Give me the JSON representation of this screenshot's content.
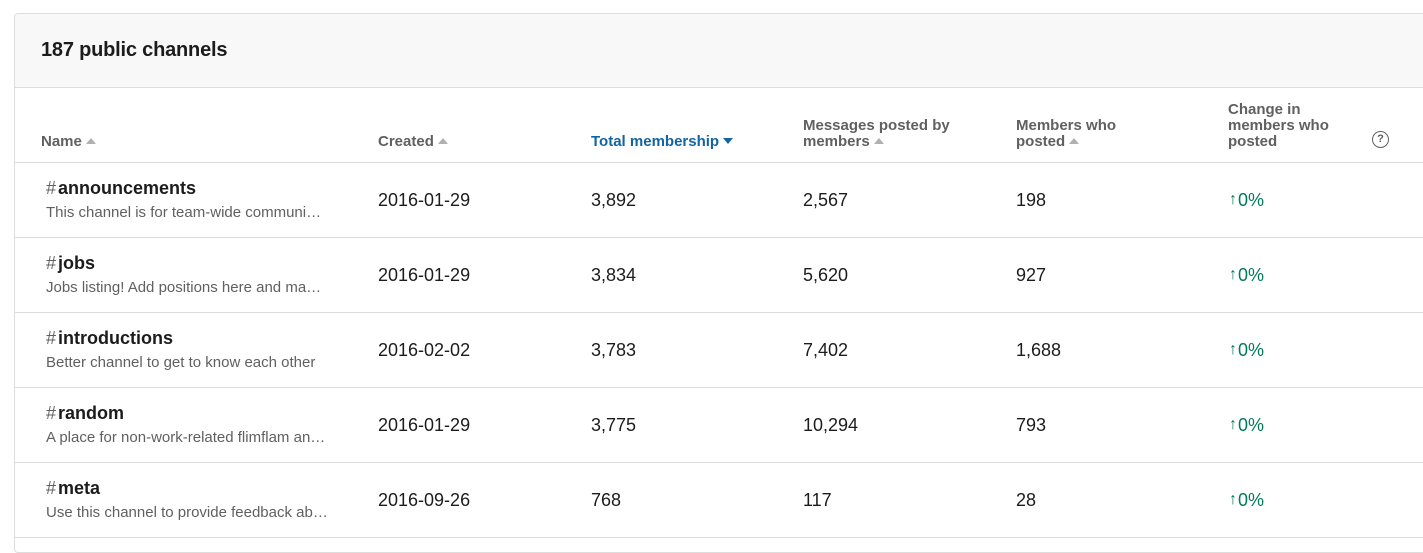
{
  "header": {
    "title": "187 public channels"
  },
  "columns": [
    {
      "label_lines": [
        "Name"
      ],
      "sort": "up"
    },
    {
      "label_lines": [
        "Created"
      ],
      "sort": "up"
    },
    {
      "label_lines": [
        "Total membership"
      ],
      "sort": "down",
      "active": true
    },
    {
      "label_lines": [
        "Messages posted by",
        "members"
      ],
      "sort": "up"
    },
    {
      "label_lines": [
        "Members who",
        "posted"
      ],
      "sort": "up"
    },
    {
      "label_lines": [
        "Change in",
        "members who",
        "posted"
      ],
      "sort": "none"
    }
  ],
  "help_icon": {
    "glyph": "?"
  },
  "channel_prefix": "#",
  "rows": [
    {
      "name": "announcements",
      "description": "This channel is for team-wide communication and announcements",
      "created": "2016-01-29",
      "total_membership": "3,892",
      "messages_posted": "2,567",
      "members_posted": "198",
      "change": "0%"
    },
    {
      "name": "jobs",
      "description": "Jobs listing! Add positions here and make sure",
      "created": "2016-01-29",
      "total_membership": "3,834",
      "messages_posted": "5,620",
      "members_posted": "927",
      "change": "0%"
    },
    {
      "name": "introductions",
      "description": "Better channel to get to know each other",
      "created": "2016-02-02",
      "total_membership": "3,783",
      "messages_posted": "7,402",
      "members_posted": "1,688",
      "change": "0%"
    },
    {
      "name": "random",
      "description": "A place for non-work-related flimflam and such",
      "created": "2016-01-29",
      "total_membership": "3,775",
      "messages_posted": "10,294",
      "members_posted": "793",
      "change": "0%"
    },
    {
      "name": "meta",
      "description": "Use this channel to provide feedback about the community",
      "created": "2016-09-26",
      "total_membership": "768",
      "messages_posted": "117",
      "members_posted": "28",
      "change": "0%"
    }
  ],
  "change_arrow": "↑",
  "colors": {
    "accent": "#1264a3",
    "positive": "#007a5a",
    "muted": "#616061"
  }
}
